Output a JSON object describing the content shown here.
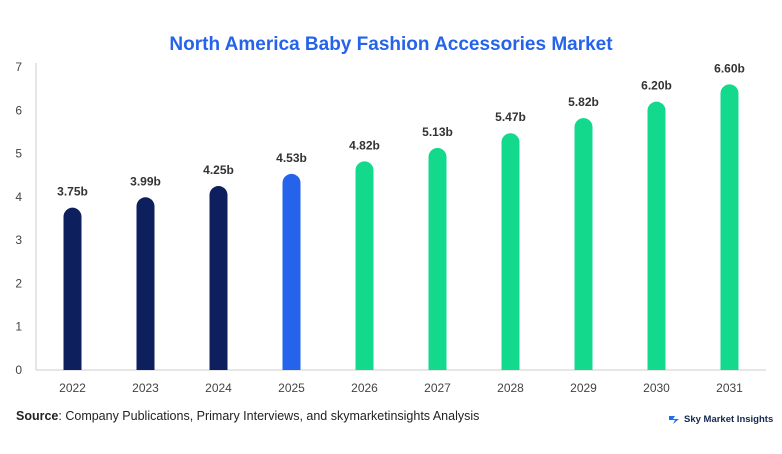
{
  "chart_data": {
    "type": "bar",
    "title": "North America Baby Fashion Accessories Market",
    "categories": [
      "2022",
      "2023",
      "2024",
      "2025",
      "2026",
      "2027",
      "2028",
      "2029",
      "2030",
      "2031"
    ],
    "values": [
      3.75,
      3.99,
      4.25,
      4.53,
      4.82,
      5.13,
      5.47,
      5.82,
      6.2,
      6.6
    ],
    "data_labels": [
      "3.75b",
      "3.99b",
      "4.25b",
      "4.53b",
      "4.82b",
      "5.13b",
      "5.47b",
      "5.82b",
      "6.20b",
      "6.60b"
    ],
    "bar_colors": [
      "#0d1f5c",
      "#0d1f5c",
      "#0d1f5c",
      "#2563eb",
      "#12d98c",
      "#12d98c",
      "#12d98c",
      "#12d98c",
      "#12d98c",
      "#12d98c"
    ],
    "ylim": [
      0,
      7
    ],
    "yticks": [
      0,
      1,
      2,
      3,
      4,
      5,
      6,
      7
    ],
    "xlabel": "",
    "ylabel": "",
    "grid": false
  },
  "footer": {
    "source_label": "Source",
    "source_text": ": Company Publications, Primary Interviews, and skymarketinsights Analysis",
    "brand": "Sky Market Insights"
  },
  "colors": {
    "title": "#2563eb",
    "axis": "#cccccc"
  }
}
